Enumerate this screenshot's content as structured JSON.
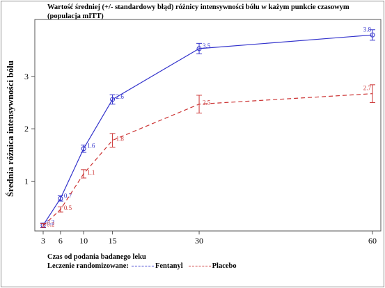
{
  "chart_data": {
    "type": "line",
    "title": "Wartość średniej (+/- standardowy błąd) różnicy intensywności bólu w każym punkcie czasowym (populacja mITT)",
    "xlabel": "Czas od podania badanego leku",
    "ylabel": "Średnia różnica intensywności bólu",
    "x": [
      3,
      6,
      10,
      15,
      30,
      60
    ],
    "x_ticks": [
      "3",
      "6",
      "10",
      "15",
      "30",
      "60"
    ],
    "xlim": [
      3,
      60
    ],
    "y_ticks": [
      "1",
      "2",
      "3"
    ],
    "ylim": [
      0.05,
      3.9
    ],
    "legend_title": "Leczenie randomizowane:",
    "grid": false,
    "series": [
      {
        "name": "Fentanyl",
        "color": "#3333cc",
        "values": [
          0.16,
          0.67,
          1.62,
          2.56,
          3.53,
          3.79
        ],
        "errors": [
          0.04,
          0.05,
          0.07,
          0.09,
          0.1,
          0.1
        ],
        "labels": [
          "0.2",
          "0.7",
          "1.6",
          "2.6",
          "3.5",
          "3.8"
        ]
      },
      {
        "name": "Placebo",
        "color": "#cc3333",
        "values": [
          0.15,
          0.46,
          1.14,
          1.78,
          2.47,
          2.67
        ],
        "errors": [
          0.04,
          0.05,
          0.08,
          0.13,
          0.17,
          0.17
        ],
        "labels": [
          "0.2",
          "0.5",
          "1.1",
          "1.8",
          "2.5",
          "2.7"
        ]
      }
    ]
  }
}
